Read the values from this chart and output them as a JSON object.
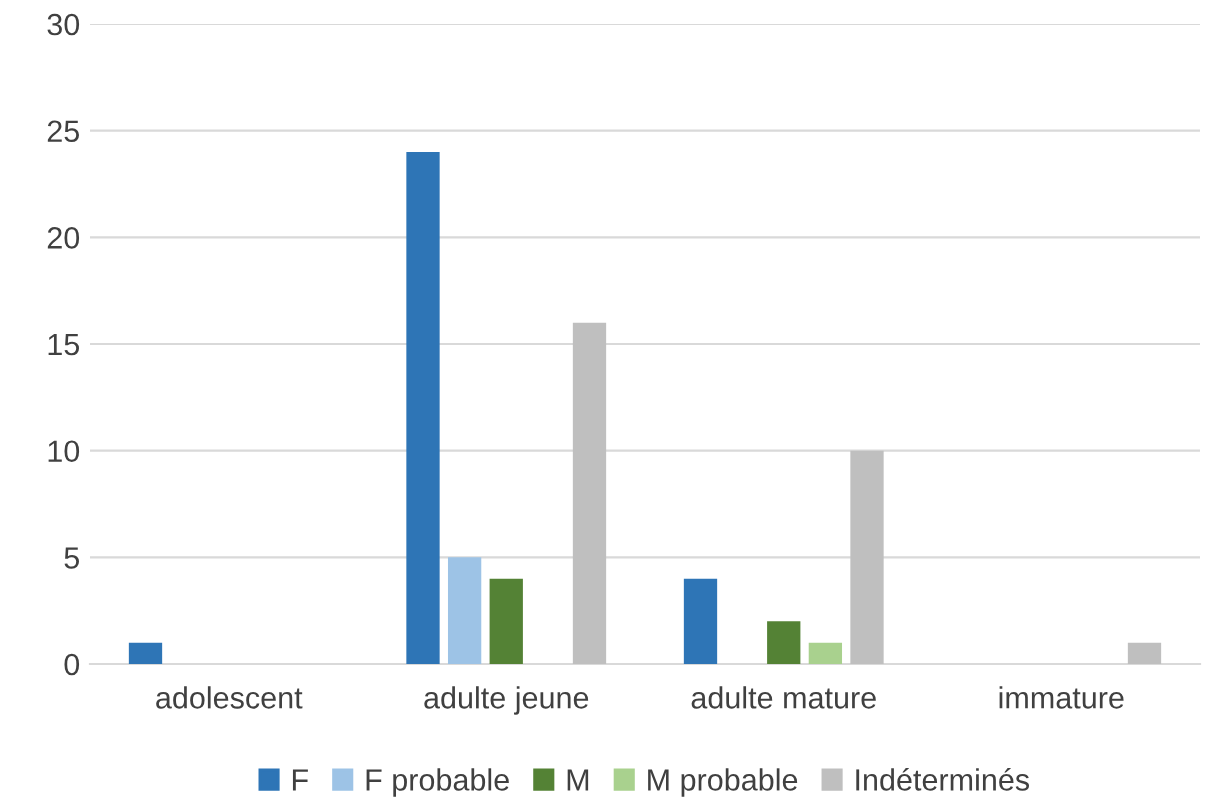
{
  "chart_data": {
    "type": "bar",
    "categories": [
      "adolescent",
      "adulte jeune",
      "adulte mature",
      "immature"
    ],
    "series": [
      {
        "name": "F",
        "color": "#2e75b6",
        "values": [
          1,
          24,
          4,
          0
        ]
      },
      {
        "name": "F probable",
        "color": "#9dc3e6",
        "values": [
          0,
          5,
          0,
          0
        ]
      },
      {
        "name": "M",
        "color": "#548235",
        "values": [
          0,
          4,
          2,
          0
        ]
      },
      {
        "name": "M probable",
        "color": "#a9d18e",
        "values": [
          0,
          0,
          1,
          0
        ]
      },
      {
        "name": "Indéterminés",
        "color": "#bfbfbf",
        "values": [
          0,
          16,
          10,
          1
        ]
      }
    ],
    "ylim": [
      0,
      30
    ],
    "yticks": [
      0,
      5,
      10,
      15,
      20,
      25,
      30
    ],
    "grid": "y",
    "legend": "bottom"
  }
}
